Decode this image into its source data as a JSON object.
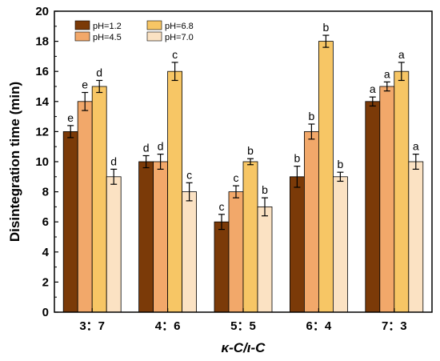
{
  "chart_data": {
    "type": "bar",
    "title": "",
    "xlabel": "κ-C/ι-C",
    "ylabel": "Disintegration time (min)",
    "ylim": [
      0,
      20
    ],
    "yticks": [
      0,
      2,
      4,
      6,
      8,
      10,
      12,
      14,
      16,
      18,
      20
    ],
    "categories": [
      "3：7",
      "4：6",
      "5：5",
      "6：4",
      "7：3"
    ],
    "legend_position": "top-left",
    "grid": false,
    "series": [
      {
        "name": "pH=1.2",
        "color": "#7b3a08",
        "values": [
          12,
          10,
          6,
          9,
          14
        ],
        "errors": [
          0.4,
          0.4,
          0.5,
          0.7,
          0.3
        ],
        "labels": [
          "e",
          "d",
          "c",
          "b",
          "a"
        ]
      },
      {
        "name": "pH=4.5",
        "color": "#f2a86a",
        "values": [
          14,
          10,
          8,
          12,
          15
        ],
        "errors": [
          0.6,
          0.5,
          0.4,
          0.5,
          0.3
        ],
        "labels": [
          "e",
          "d",
          "c",
          "b",
          "a"
        ]
      },
      {
        "name": "pH=6.8",
        "color": "#f7c665",
        "values": [
          15,
          16,
          10,
          18,
          16
        ],
        "errors": [
          0.4,
          0.6,
          0.2,
          0.4,
          0.6
        ],
        "labels": [
          "d",
          "c",
          "b",
          "b",
          "a"
        ]
      },
      {
        "name": "pH=7.0",
        "color": "#fbe2c3",
        "values": [
          9,
          8,
          7,
          9,
          10
        ],
        "errors": [
          0.5,
          0.6,
          0.6,
          0.3,
          0.5
        ],
        "labels": [
          "d",
          "c",
          "b",
          "b",
          "a"
        ]
      }
    ]
  }
}
